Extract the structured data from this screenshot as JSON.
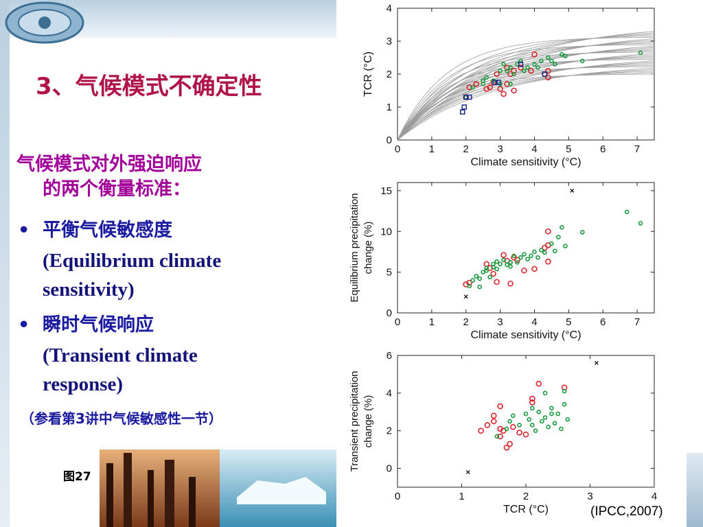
{
  "slide": {
    "title": "3、气候模式不确定性",
    "intro_line1": "气候模式对外强迫响应",
    "intro_line2": "的两个衡量标准：",
    "bullet_symbol": "•",
    "bullet1_cn": "平衡气候敏感度",
    "bullet1_en_line1": "(Equilibrium climate",
    "bullet1_en_line2": "sensitivity)",
    "bullet2_cn": "瞬时气候响应",
    "bullet2_en_line1": "(Transient climate",
    "bullet2_en_line2": "response)",
    "note": "（参看第3讲中气候敏感性一节）",
    "figure_label": "图27",
    "source": "(IPCC,2007)"
  },
  "colors": {
    "title": "#b0124a",
    "magenta_text": "#a3009a",
    "blue_text": "#1a1aa0",
    "red_marker": "#d9262c",
    "green_marker": "#159a3c",
    "blue_marker": "#1c2a8c",
    "curve": "#9a9a9a"
  },
  "chart_data": [
    {
      "type": "line",
      "xlabel": "Climate sensitivity (°C)",
      "ylabel": "TCR (°C)",
      "xlim": [
        0,
        7.5
      ],
      "ylim": [
        0,
        4
      ],
      "xticks": [
        "0",
        "1",
        "2",
        "3",
        "4",
        "5",
        "6",
        "7"
      ],
      "yticks": [
        "0",
        "1",
        "2",
        "3",
        "4"
      ],
      "curve_family": {
        "count": 30,
        "x_start": 0,
        "x_end": 7.5,
        "y_end_min": 2.0,
        "y_end_max": 3.3
      },
      "series": [
        {
          "marker": "circle-red",
          "points": [
            [
              2.1,
              1.6
            ],
            [
              2.3,
              1.7
            ],
            [
              2.6,
              1.55
            ],
            [
              2.7,
              1.6
            ],
            [
              2.8,
              1.75
            ],
            [
              3.0,
              1.55
            ],
            [
              3.1,
              1.4
            ],
            [
              3.2,
              2.2
            ],
            [
              3.2,
              1.7
            ],
            [
              3.4,
              2.1
            ],
            [
              3.4,
              1.5
            ],
            [
              3.6,
              2.2
            ],
            [
              3.9,
              2.1
            ],
            [
              4.0,
              2.6
            ],
            [
              4.3,
              2.0
            ],
            [
              4.4,
              1.9
            ],
            [
              4.4,
              2.1
            ],
            [
              2.0,
              1.3
            ],
            [
              2.9,
              2.0
            ],
            [
              3.3,
              2.0
            ]
          ]
        },
        {
          "marker": "circle-green",
          "points": [
            [
              2.2,
              1.6
            ],
            [
              2.5,
              1.8
            ],
            [
              2.6,
              1.9
            ],
            [
              2.8,
              1.8
            ],
            [
              3.0,
              2.1
            ],
            [
              3.1,
              2.3
            ],
            [
              3.2,
              2.1
            ],
            [
              3.3,
              2.2
            ],
            [
              3.4,
              2.0
            ],
            [
              3.5,
              2.3
            ],
            [
              3.7,
              2.1
            ],
            [
              3.8,
              2.2
            ],
            [
              4.0,
              2.3
            ],
            [
              4.2,
              2.4
            ],
            [
              4.4,
              2.5
            ],
            [
              4.5,
              2.4
            ],
            [
              4.6,
              2.3
            ],
            [
              4.8,
              2.6
            ],
            [
              4.9,
              2.55
            ],
            [
              5.4,
              2.4
            ],
            [
              7.1,
              2.65
            ],
            [
              2.5,
              1.7
            ],
            [
              2.0,
              1.3
            ],
            [
              3.3,
              1.7
            ],
            [
              4.1,
              2.2
            ],
            [
              3.0,
              1.7
            ],
            [
              3.6,
              2.4
            ]
          ]
        },
        {
          "marker": "square-blue",
          "points": [
            [
              1.9,
              0.85
            ],
            [
              1.95,
              1.0
            ],
            [
              2.0,
              1.3
            ],
            [
              2.1,
              1.3
            ],
            [
              2.85,
              1.75
            ],
            [
              2.95,
              1.75
            ],
            [
              3.6,
              2.3
            ],
            [
              4.3,
              2.0
            ]
          ]
        }
      ]
    },
    {
      "type": "scatter",
      "xlabel": "Climate sensitivity (°C)",
      "ylabel": "Equilibrium precipitation change (%)",
      "xlim": [
        0,
        7.5
      ],
      "ylim": [
        0,
        16
      ],
      "xticks": [
        "0",
        "1",
        "2",
        "3",
        "4",
        "5",
        "6",
        "7"
      ],
      "yticks": [
        "0",
        "5",
        "10",
        "15"
      ],
      "series": [
        {
          "marker": "circle-red",
          "points": [
            [
              2.0,
              3.5
            ],
            [
              2.1,
              3.7
            ],
            [
              2.6,
              6.0
            ],
            [
              2.7,
              5.5
            ],
            [
              2.8,
              4.8
            ],
            [
              2.9,
              3.8
            ],
            [
              3.1,
              7.1
            ],
            [
              3.2,
              6.4
            ],
            [
              3.3,
              3.6
            ],
            [
              3.4,
              6.8
            ],
            [
              3.5,
              6.5
            ],
            [
              3.7,
              5.2
            ],
            [
              4.0,
              5.4
            ],
            [
              4.3,
              8.0
            ],
            [
              4.4,
              8.3
            ],
            [
              4.4,
              6.3
            ],
            [
              4.4,
              10.0
            ]
          ]
        },
        {
          "marker": "circle-green",
          "points": [
            [
              2.2,
              4.0
            ],
            [
              2.3,
              4.5
            ],
            [
              2.4,
              4.2
            ],
            [
              2.5,
              5.0
            ],
            [
              2.6,
              5.5
            ],
            [
              2.7,
              4.4
            ],
            [
              2.8,
              5.6
            ],
            [
              2.9,
              5.4
            ],
            [
              3.0,
              6.0
            ],
            [
              3.1,
              6.5
            ],
            [
              3.2,
              5.9
            ],
            [
              3.3,
              6.2
            ],
            [
              3.4,
              7.0
            ],
            [
              3.5,
              6.2
            ],
            [
              3.6,
              6.8
            ],
            [
              3.7,
              7.2
            ],
            [
              3.8,
              6.6
            ],
            [
              3.9,
              7.0
            ],
            [
              4.0,
              7.5
            ],
            [
              4.1,
              6.8
            ],
            [
              4.2,
              7.7
            ],
            [
              4.3,
              7.4
            ],
            [
              4.5,
              8.5
            ],
            [
              4.6,
              7.6
            ],
            [
              4.7,
              9.3
            ],
            [
              4.8,
              10.5
            ],
            [
              4.9,
              8.2
            ],
            [
              5.4,
              9.9
            ],
            [
              6.7,
              12.4
            ],
            [
              7.1,
              11.0
            ],
            [
              2.6,
              5.2
            ],
            [
              2.9,
              6.3
            ],
            [
              3.3,
              5.7
            ],
            [
              2.1,
              3.3
            ],
            [
              2.4,
              3.2
            ],
            [
              2.8,
              6.0
            ]
          ]
        },
        {
          "marker": "x-black",
          "points": [
            [
              2.0,
              2.0
            ],
            [
              5.1,
              15.0
            ]
          ]
        }
      ]
    },
    {
      "type": "scatter",
      "xlabel": "TCR (°C)",
      "ylabel": "Transient precipitation change (%)",
      "xlim": [
        0,
        4
      ],
      "ylim": [
        -1,
        6
      ],
      "xticks": [
        "0",
        "1",
        "2",
        "3",
        "4"
      ],
      "yticks": [
        "0",
        "2",
        "4",
        "6"
      ],
      "series": [
        {
          "marker": "circle-red",
          "points": [
            [
              1.3,
              2.0
            ],
            [
              1.4,
              2.3
            ],
            [
              1.5,
              2.8
            ],
            [
              1.5,
              2.5
            ],
            [
              1.6,
              2.1
            ],
            [
              1.6,
              3.3
            ],
            [
              1.65,
              2.0
            ],
            [
              1.7,
              1.1
            ],
            [
              1.8,
              2.2
            ],
            [
              1.9,
              1.9
            ],
            [
              2.0,
              1.8
            ],
            [
              2.1,
              3.5
            ],
            [
              2.1,
              3.7
            ],
            [
              2.2,
              4.5
            ],
            [
              2.6,
              4.3
            ],
            [
              1.6,
              1.7
            ],
            [
              1.75,
              1.3
            ]
          ]
        },
        {
          "marker": "circle-green",
          "points": [
            [
              1.55,
              1.7
            ],
            [
              1.7,
              2.1
            ],
            [
              1.75,
              2.5
            ],
            [
              1.8,
              2.8
            ],
            [
              1.9,
              2.3
            ],
            [
              2.0,
              2.9
            ],
            [
              2.05,
              2.6
            ],
            [
              2.1,
              2.3
            ],
            [
              2.1,
              3.2
            ],
            [
              2.15,
              2.0
            ],
            [
              2.2,
              3.0
            ],
            [
              2.25,
              2.5
            ],
            [
              2.3,
              2.7
            ],
            [
              2.35,
              2.2
            ],
            [
              2.4,
              2.9
            ],
            [
              2.4,
              3.2
            ],
            [
              2.45,
              2.4
            ],
            [
              2.5,
              2.9
            ],
            [
              2.55,
              2.1
            ],
            [
              2.6,
              3.4
            ],
            [
              2.6,
              4.1
            ],
            [
              2.65,
              2.6
            ],
            [
              2.3,
              4.0
            ]
          ]
        },
        {
          "marker": "x-black",
          "points": [
            [
              1.1,
              -0.2
            ],
            [
              3.1,
              5.6
            ]
          ]
        }
      ]
    }
  ]
}
